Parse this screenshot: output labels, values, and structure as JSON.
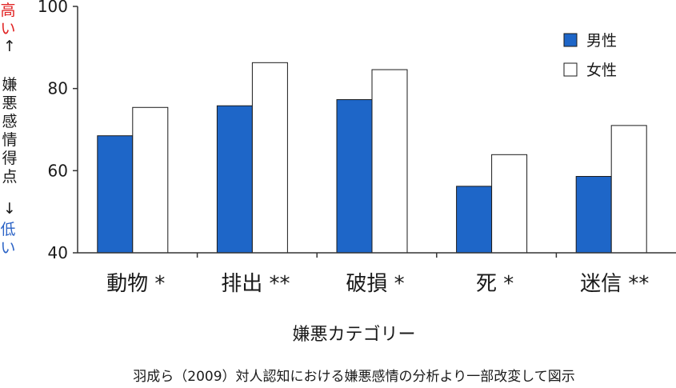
{
  "left_axis": {
    "high_label": "高い",
    "up_arrow": "↑",
    "title_chars": [
      "嫌",
      "悪",
      "感",
      "情",
      "得",
      "点"
    ],
    "down_arrow": "↓",
    "low_label": "低い",
    "high_color": "#e02020",
    "low_color": "#2b63c6"
  },
  "colors": {
    "male": "#1e66c8",
    "female": "#ffffff",
    "axis": "#333333"
  },
  "chart_data": {
    "type": "bar",
    "categories": [
      "動物 *",
      "排出 **",
      "破損 *",
      "死 *",
      "迷信 **"
    ],
    "series": [
      {
        "name": "男性",
        "values": [
          68.5,
          75.8,
          77.3,
          56.2,
          58.6
        ]
      },
      {
        "name": "女性",
        "values": [
          75.4,
          86.3,
          84.6,
          63.9,
          71.0
        ]
      }
    ],
    "xlabel": "嫌悪カテゴリー",
    "ylim": [
      40,
      100
    ],
    "yticks": [
      40,
      60,
      80,
      100
    ],
    "legend_position": "top-right",
    "grid": false
  },
  "caption": "羽成ら（2009）対人認知における嫌悪感情の分析より一部改変して図示"
}
